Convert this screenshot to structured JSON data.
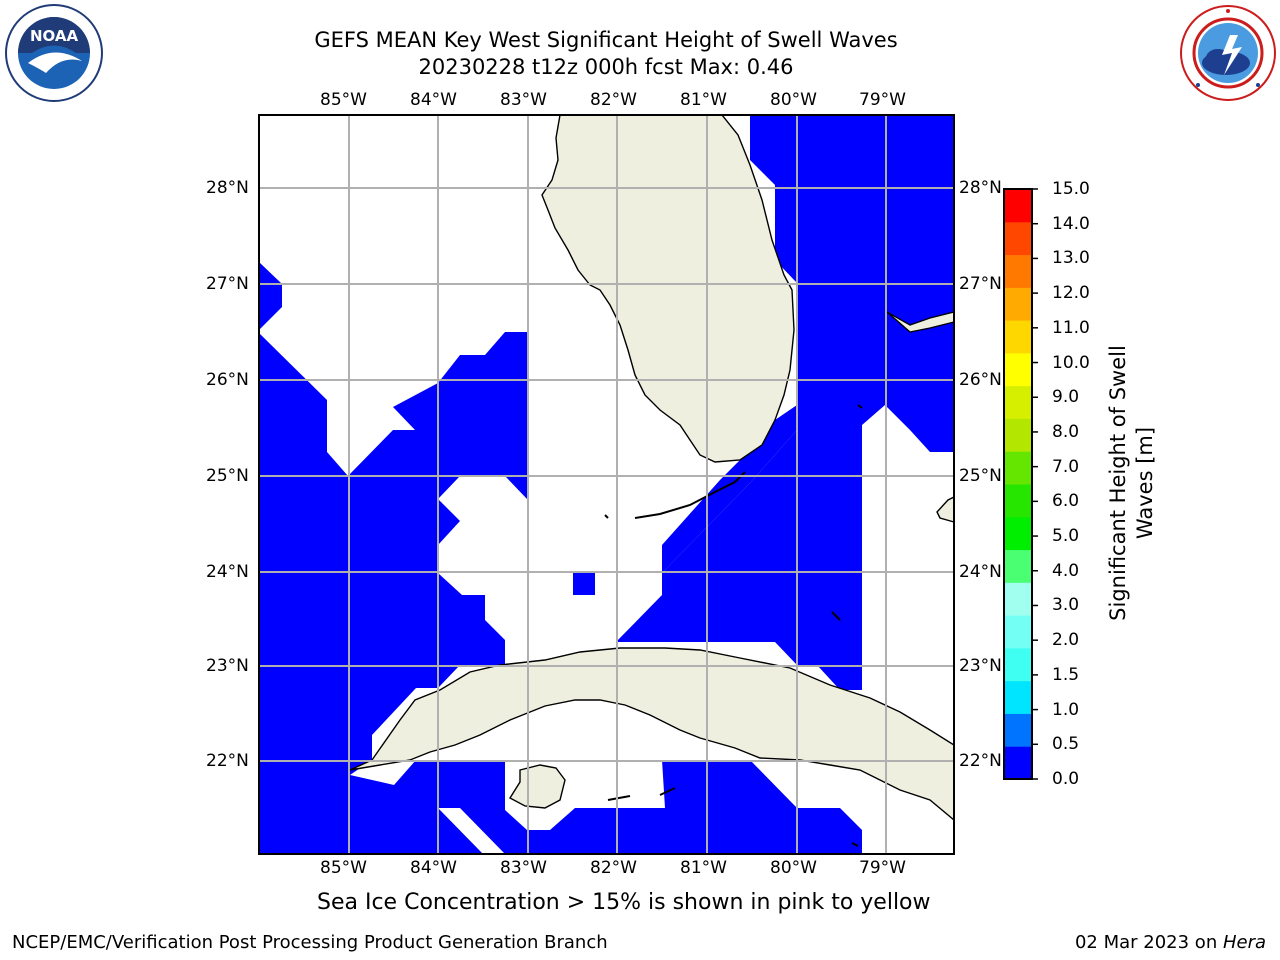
{
  "title": {
    "line1": "GEFS MEAN Key West Significant Height of Swell Waves",
    "line2": "20230228 t12z 000h fcst   Max: 0.46"
  },
  "logos": {
    "left": {
      "name": "NOAA",
      "text": "NOAA",
      "ring_text": "NATIONAL OCEANIC AND ATMOSPHERIC ADMINISTRATION · U.S. DEPARTMENT OF COMMERCE"
    },
    "right": {
      "name": "National Weather Service",
      "ring_text": "NATIONAL WEATHER SERVICE"
    }
  },
  "map": {
    "lon_labels": [
      "85°W",
      "84°W",
      "83°W",
      "82°W",
      "81°W",
      "80°W",
      "79°W"
    ],
    "lat_labels": [
      "28°N",
      "27°N",
      "26°N",
      "25°N",
      "24°N",
      "23°N",
      "22°N"
    ],
    "colors": {
      "ocean_swell": "#0000ff",
      "land": "#efefdf",
      "no_data": "#ffffff",
      "grid": "#b0b0b0",
      "coast": "#000000"
    }
  },
  "colorbar": {
    "label_line1": "Significant Height of Swell",
    "label_line2": "Waves [m]",
    "ticks": [
      "0.0",
      "0.5",
      "1.0",
      "1.5",
      "2.0",
      "3.0",
      "4.0",
      "5.0",
      "6.0",
      "7.0",
      "8.0",
      "9.0",
      "10.0",
      "11.0",
      "12.0",
      "13.0",
      "14.0",
      "15.0"
    ],
    "colors": [
      "#0000ff",
      "#0073ff",
      "#00e5ff",
      "#3ffff3",
      "#73fff3",
      "#a0ffef",
      "#4bff73",
      "#00ef00",
      "#26e600",
      "#65e600",
      "#b3e600",
      "#d6ef00",
      "#ffff00",
      "#ffd700",
      "#ffaa00",
      "#ff7800",
      "#ff4700",
      "#ff0000"
    ]
  },
  "sea_ice_note": "Sea Ice Concentration > 15% is shown in pink to yellow",
  "footer": {
    "left": "NCEP/EMC/Verification Post Processing Product Generation Branch",
    "right_prefix": "02 Mar 2023 on ",
    "right_machine": "Hera"
  }
}
